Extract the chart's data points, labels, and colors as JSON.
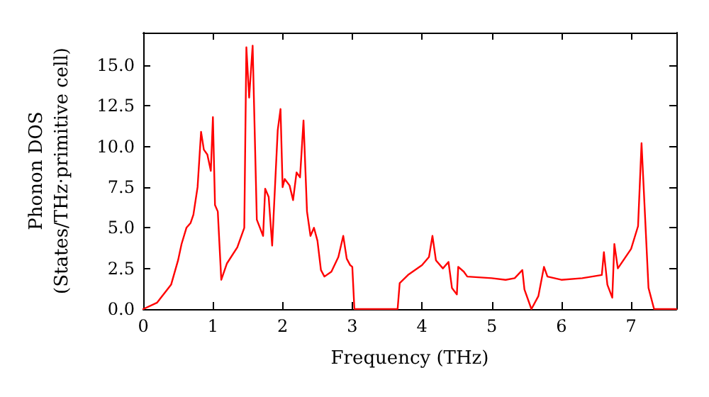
{
  "chart_data": {
    "type": "line",
    "xlabel": "Frequency (THz)",
    "ylabel": "Phonon DOS\n(States/THz·primitive cell)",
    "xlim": [
      0,
      7.65
    ],
    "ylim": [
      0,
      17
    ],
    "xticks": [
      0,
      1,
      2,
      3,
      4,
      5,
      6,
      7
    ],
    "yticks": [
      {
        "value": 0,
        "label": "0.0"
      },
      {
        "value": 2.5,
        "label": "2.5"
      },
      {
        "value": 5,
        "label": "5.0"
      },
      {
        "value": 7.5,
        "label": "7.5"
      },
      {
        "value": 10,
        "label": "10.0"
      },
      {
        "value": 12.5,
        "label": "12.5"
      },
      {
        "value": 15,
        "label": "15.0"
      }
    ],
    "grid": false,
    "marker": "none",
    "line_style": "solid",
    "series": [
      {
        "color": "#ff0000",
        "x": [
          0,
          0.2,
          0.4,
          0.5,
          0.55,
          0.62,
          0.68,
          0.72,
          0.78,
          0.83,
          0.87,
          0.92,
          0.97,
          1.0,
          1.03,
          1.07,
          1.12,
          1.2,
          1.35,
          1.45,
          1.48,
          1.52,
          1.57,
          1.63,
          1.72,
          1.75,
          1.8,
          1.85,
          1.93,
          1.97,
          2.0,
          2.03,
          2.1,
          2.15,
          2.2,
          2.25,
          2.3,
          2.35,
          2.4,
          2.45,
          2.5,
          2.55,
          2.6,
          2.7,
          2.8,
          2.87,
          2.92,
          2.97,
          3.0,
          3.03,
          3.65,
          3.68,
          3.8,
          4.0,
          4.1,
          4.15,
          4.2,
          4.3,
          4.38,
          4.43,
          4.5,
          4.52,
          4.6,
          4.65,
          5.0,
          5.2,
          5.33,
          5.44,
          5.47,
          5.57,
          5.67,
          5.75,
          5.8,
          6.0,
          6.3,
          6.58,
          6.61,
          6.66,
          6.73,
          6.76,
          6.81,
          7.0,
          7.1,
          7.15,
          7.25,
          7.33,
          7.65
        ],
        "values": [
          0,
          0.4,
          1.5,
          3.0,
          4.0,
          5.0,
          5.3,
          5.8,
          7.5,
          10.9,
          9.8,
          9.5,
          8.5,
          11.8,
          6.4,
          6.0,
          1.8,
          2.8,
          3.8,
          5.0,
          16.1,
          13.0,
          16.2,
          5.5,
          4.5,
          7.4,
          6.9,
          3.9,
          11.0,
          12.3,
          7.5,
          8.0,
          7.6,
          6.7,
          8.4,
          8.1,
          11.6,
          6.0,
          4.5,
          5.0,
          4.2,
          2.4,
          2.0,
          2.3,
          3.2,
          4.5,
          3.1,
          2.7,
          2.6,
          0,
          0,
          1.6,
          2.1,
          2.7,
          3.2,
          4.5,
          3.0,
          2.5,
          2.9,
          1.3,
          0.9,
          2.6,
          2.3,
          2.0,
          1.9,
          1.8,
          1.9,
          2.4,
          1.2,
          0,
          0.8,
          2.6,
          2.0,
          1.8,
          1.9,
          2.1,
          3.5,
          1.5,
          0.7,
          4.0,
          2.5,
          3.7,
          5.1,
          10.2,
          1.3,
          0,
          0
        ]
      }
    ]
  }
}
